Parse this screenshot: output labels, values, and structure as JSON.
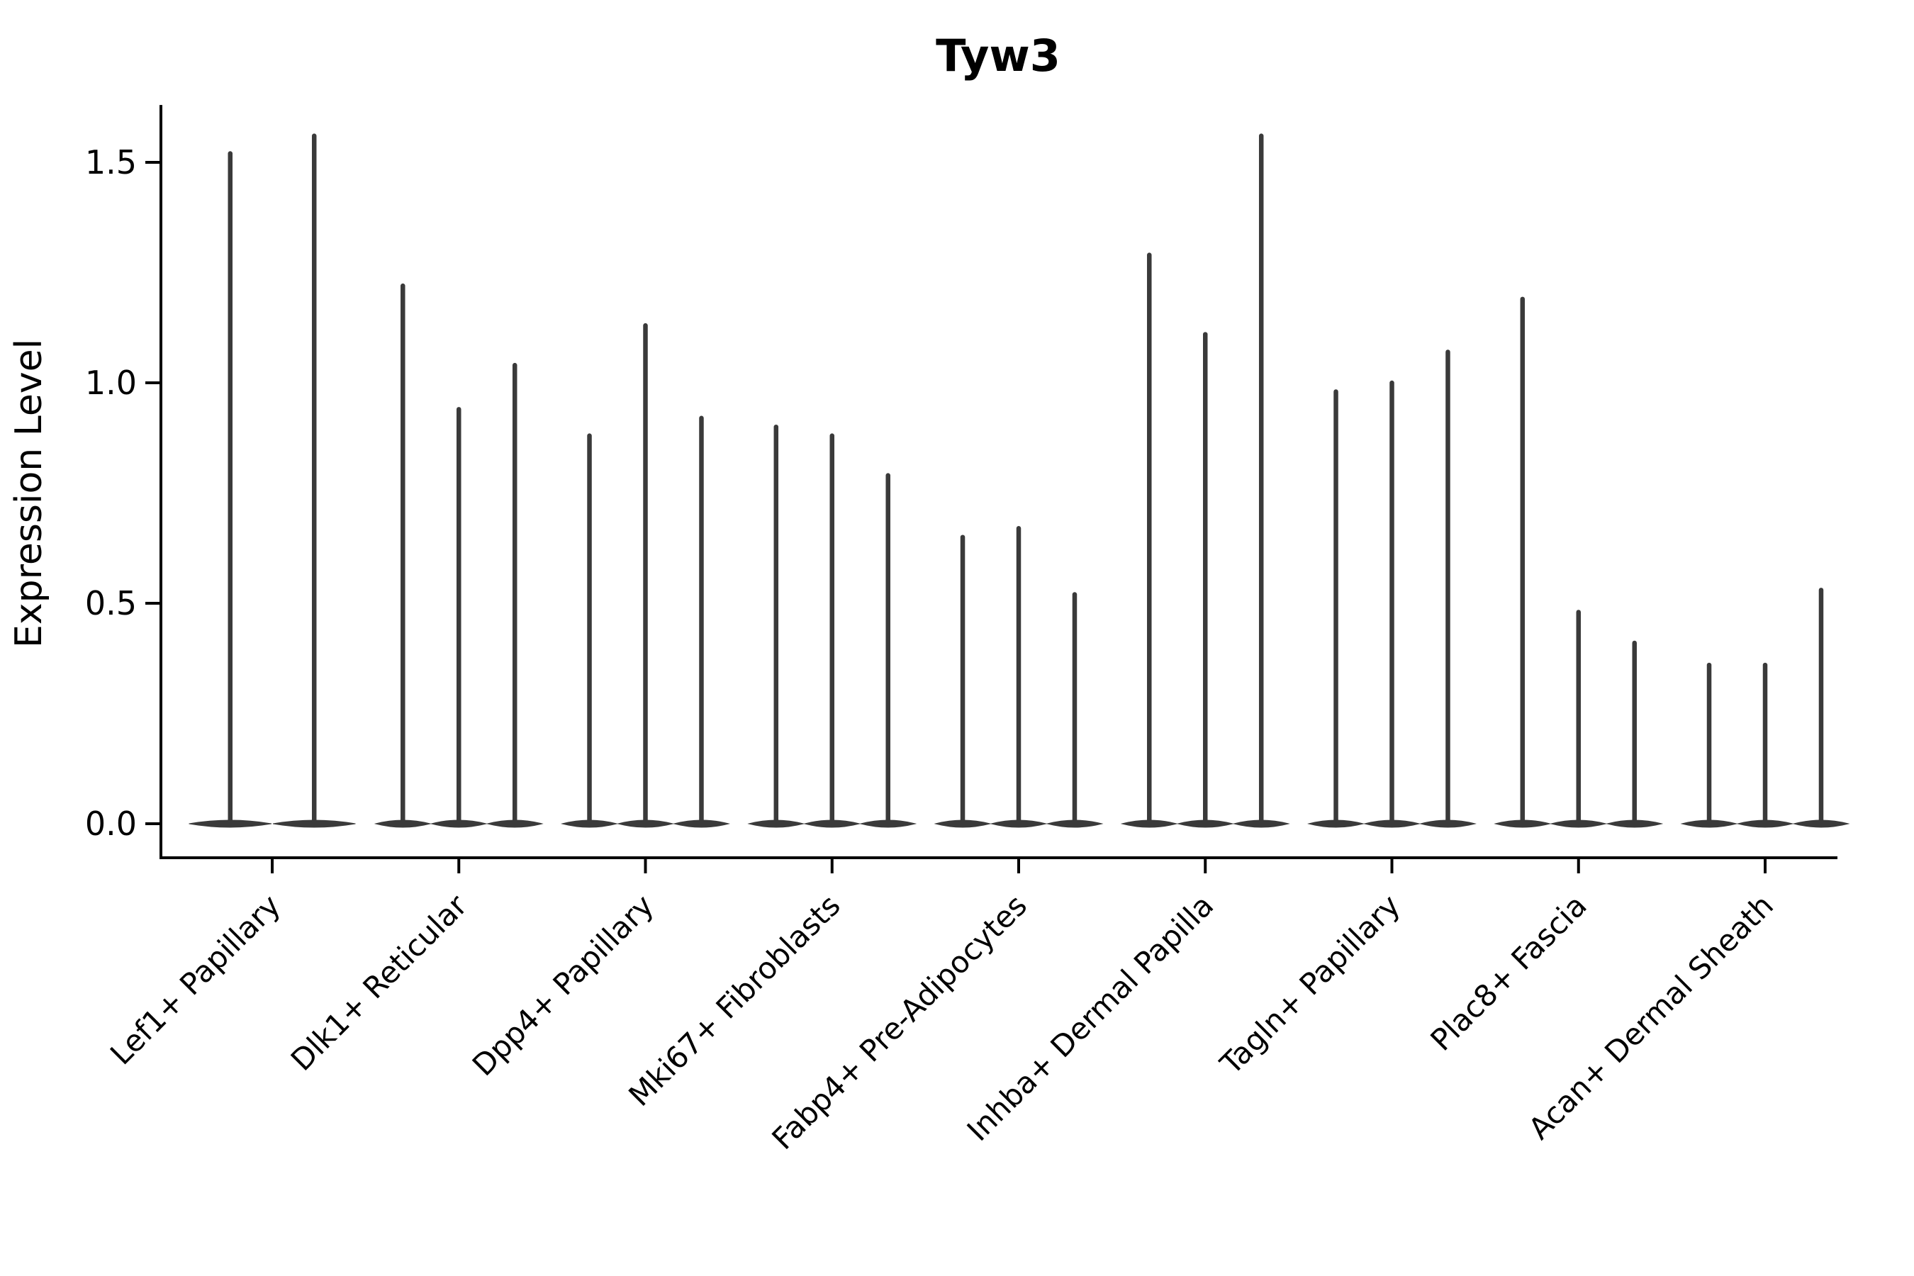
{
  "title": "Tyw3",
  "y_axis_label": "Expression Level",
  "colors": {
    "violin": "#3a3a3a",
    "axis": "#000000",
    "text": "#000000",
    "background": "#ffffff"
  },
  "chart_data": {
    "type": "violin",
    "title": "Tyw3",
    "xlabel": "",
    "ylabel": "Expression Level",
    "categories": [
      "Lef1+ Papillary",
      "Dlk1+ Reticular",
      "Dpp4+ Papillary",
      "Mki67+ Fibroblasts",
      "Fabp4+ Pre-Adipocytes",
      "Inhba+ Dermal Papilla",
      "Tagln+ Papillary",
      "Plac8+ Fascia",
      "Acan+ Dermal Sheath"
    ],
    "description": "Seurat-style stacked violin plot of gene expression; each category shows narrow violins (one per sub-violin) with a dense mass at 0 and a thin spike up to the maximum expression value.",
    "violin_max_values": [
      [
        1.52,
        1.56
      ],
      [
        1.22,
        0.94,
        1.04
      ],
      [
        0.88,
        1.13,
        0.92
      ],
      [
        0.9,
        0.88,
        0.79
      ],
      [
        0.65,
        0.67,
        0.52
      ],
      [
        1.29,
        1.11,
        1.56
      ],
      [
        0.98,
        1.0,
        1.07
      ],
      [
        1.19,
        0.48,
        0.41
      ],
      [
        0.36,
        0.36,
        0.53
      ]
    ],
    "yticks": [
      0.0,
      0.5,
      1.0,
      1.5
    ],
    "ytick_labels": [
      "0.0",
      "0.5",
      "1.0",
      "1.5"
    ],
    "ylim": [
      -0.05,
      1.63
    ],
    "grid": false,
    "legend": "none",
    "x_tick_label_rotation_deg": 45
  }
}
